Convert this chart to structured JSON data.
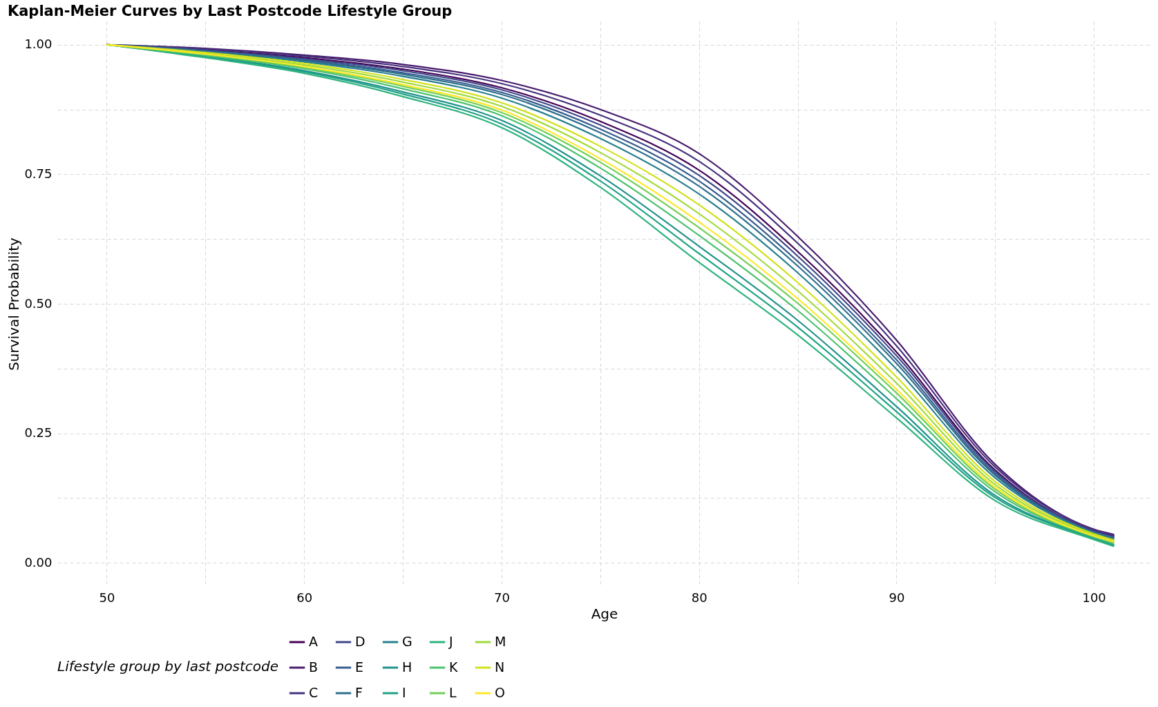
{
  "chart_data": {
    "type": "line",
    "title": "Kaplan-Meier Curves by Last Postcode Lifestyle Group",
    "xlabel": "Age",
    "ylabel": "Survival Probability",
    "legend_title": "Lifestyle group by last postcode",
    "legend": "bottom",
    "grid": true,
    "line_style": "solid",
    "xlim": [
      47.5,
      102.9
    ],
    "ylim": [
      -0.045,
      1.045
    ],
    "xticks": [
      50,
      {
        "value": 55,
        "label": null
      },
      60,
      {
        "value": 65,
        "label": null
      },
      70,
      {
        "value": 75,
        "label": null
      },
      80,
      {
        "value": 85,
        "label": null
      },
      90,
      {
        "value": 95,
        "label": null
      },
      100
    ],
    "yticks": [
      {
        "value": 0,
        "label": "0.00"
      },
      {
        "value": 0.125,
        "label": null
      },
      {
        "value": 0.25,
        "label": "0.25"
      },
      {
        "value": 0.375,
        "label": null
      },
      {
        "value": 0.5,
        "label": "0.50"
      },
      {
        "value": 0.625,
        "label": null
      },
      {
        "value": 0.75,
        "label": "0.75"
      },
      {
        "value": 0.875,
        "label": null
      },
      {
        "value": 1,
        "label": "1.00"
      }
    ],
    "x": [
      50,
      55,
      60,
      65,
      70,
      75,
      80,
      85,
      90,
      95,
      100,
      101
    ],
    "series": [
      {
        "name": "A",
        "color": "#440154",
        "values": [
          1,
          0.99,
          0.975,
          0.953,
          0.917,
          0.852,
          0.758,
          0.601,
          0.407,
          0.179,
          0.062,
          0.052
        ]
      },
      {
        "name": "B",
        "color": "#481b6d",
        "values": [
          1,
          0.993,
          0.98,
          0.962,
          0.931,
          0.875,
          0.79,
          0.63,
          0.43,
          0.19,
          0.065,
          0.055
        ]
      },
      {
        "name": "C",
        "color": "#46327e",
        "values": [
          1,
          0.992,
          0.978,
          0.958,
          0.925,
          0.864,
          0.775,
          0.617,
          0.419,
          0.185,
          0.064,
          0.053
        ]
      },
      {
        "name": "D",
        "color": "#3f4788",
        "values": [
          1,
          0.989,
          0.973,
          0.95,
          0.913,
          0.845,
          0.748,
          0.592,
          0.4,
          0.176,
          0.061,
          0.05
        ]
      },
      {
        "name": "E",
        "color": "#365c8d",
        "values": [
          1,
          0.988,
          0.971,
          0.946,
          0.908,
          0.837,
          0.737,
          0.582,
          0.392,
          0.172,
          0.06,
          0.049
        ]
      },
      {
        "name": "F",
        "color": "#2e6e8e",
        "values": [
          1,
          0.988,
          0.969,
          0.943,
          0.904,
          0.83,
          0.727,
          0.573,
          0.385,
          0.169,
          0.059,
          0.048
        ]
      },
      {
        "name": "G",
        "color": "#277f8e",
        "values": [
          1,
          0.986,
          0.967,
          0.939,
          0.897,
          0.819,
          0.712,
          0.56,
          0.374,
          0.164,
          0.058,
          0.046
        ]
      },
      {
        "name": "H",
        "color": "#21918c",
        "values": [
          1,
          0.978,
          0.95,
          0.909,
          0.854,
          0.747,
          0.611,
          0.468,
          0.302,
          0.13,
          0.048,
          0.035
        ]
      },
      {
        "name": "I",
        "color": "#1fa187",
        "values": [
          1,
          0.976,
          0.948,
          0.905,
          0.847,
          0.737,
          0.597,
          0.455,
          0.292,
          0.126,
          0.047,
          0.034
        ]
      },
      {
        "name": "J",
        "color": "#2db27d",
        "values": [
          1,
          0.975,
          0.945,
          0.9,
          0.84,
          0.725,
          0.58,
          0.44,
          0.28,
          0.12,
          0.045,
          0.032
        ]
      },
      {
        "name": "K",
        "color": "#4ac16d",
        "values": [
          1,
          0.979,
          0.954,
          0.915,
          0.863,
          0.762,
          0.632,
          0.487,
          0.317,
          0.137,
          0.05,
          0.038
        ]
      },
      {
        "name": "L",
        "color": "#71cf57",
        "values": [
          1,
          0.981,
          0.956,
          0.92,
          0.869,
          0.773,
          0.647,
          0.501,
          0.328,
          0.142,
          0.051,
          0.039
        ]
      },
      {
        "name": "M",
        "color": "#a0da39",
        "values": [
          1,
          0.983,
          0.961,
          0.928,
          0.881,
          0.792,
          0.674,
          0.525,
          0.347,
          0.151,
          0.054,
          0.042
        ]
      },
      {
        "name": "N",
        "color": "#d0e11c",
        "values": [
          1,
          0.985,
          0.964,
          0.933,
          0.888,
          0.804,
          0.691,
          0.541,
          0.359,
          0.157,
          0.056,
          0.044
        ]
      },
      {
        "name": "O",
        "color": "#fde725",
        "values": [
          1,
          0.982,
          0.958,
          0.923,
          0.874,
          0.78,
          0.658,
          0.51,
          0.335,
          0.146,
          0.052,
          0.041
        ]
      }
    ]
  }
}
